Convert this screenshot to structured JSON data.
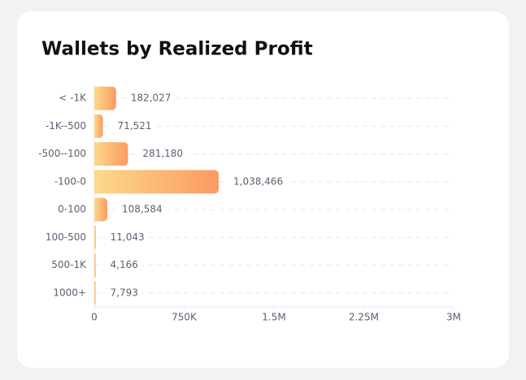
{
  "chart_data": {
    "type": "bar",
    "orientation": "horizontal",
    "title": "Wallets by Realized Profit",
    "categories": [
      "< -1K",
      "-1K--500",
      "-500--100",
      "-100-0",
      "0-100",
      "100-500",
      "500-1K",
      "1000+"
    ],
    "values": [
      182027,
      71521,
      281180,
      1038466,
      108584,
      11043,
      4166,
      7793
    ],
    "value_labels": [
      "182,027",
      "71,521",
      "281,180",
      "1,038,466",
      "108,584",
      "11,043",
      "4,166",
      "7,793"
    ],
    "color": [
      "#fdd98a",
      "#fb9a62"
    ],
    "xlim": [
      0,
      3000000
    ],
    "xticks": [
      0,
      {
        "value": 750000,
        "label": "750K"
      },
      {
        "value": 1500000,
        "label": "1.5M"
      },
      {
        "value": 2250000,
        "label": "2.25M"
      },
      {
        "value": 3000000,
        "label": "3M"
      }
    ]
  }
}
